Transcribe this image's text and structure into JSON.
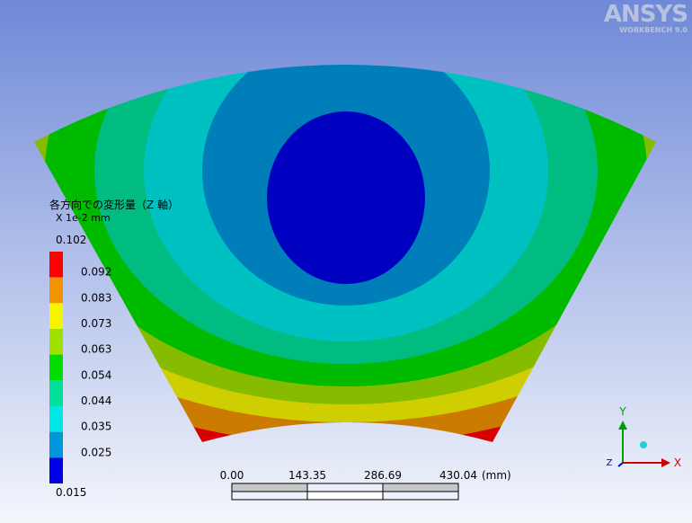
{
  "logo": {
    "brand": "ANSYS",
    "product": "WORKBENCH 9.0"
  },
  "legend": {
    "title": "各方向での変形量（Z 軸）",
    "unit": "X 1e-2 mm",
    "levels": [
      "0.102",
      "0.092",
      "0.083",
      "0.073",
      "0.063",
      "0.054",
      "0.044",
      "0.035",
      "0.025",
      "0.015"
    ],
    "colors": [
      "#ff0000",
      "#f29400",
      "#f5f500",
      "#9ee000",
      "#00dd00",
      "#00e09a",
      "#00e6e6",
      "#0096dc",
      "#0000e6"
    ]
  },
  "scale_bar": {
    "labels": [
      "0.00",
      "143.35",
      "286.69",
      "430.04"
    ],
    "unit": "(mm)"
  },
  "triad": {
    "y": "Y",
    "z": "Z",
    "x": "X"
  }
}
